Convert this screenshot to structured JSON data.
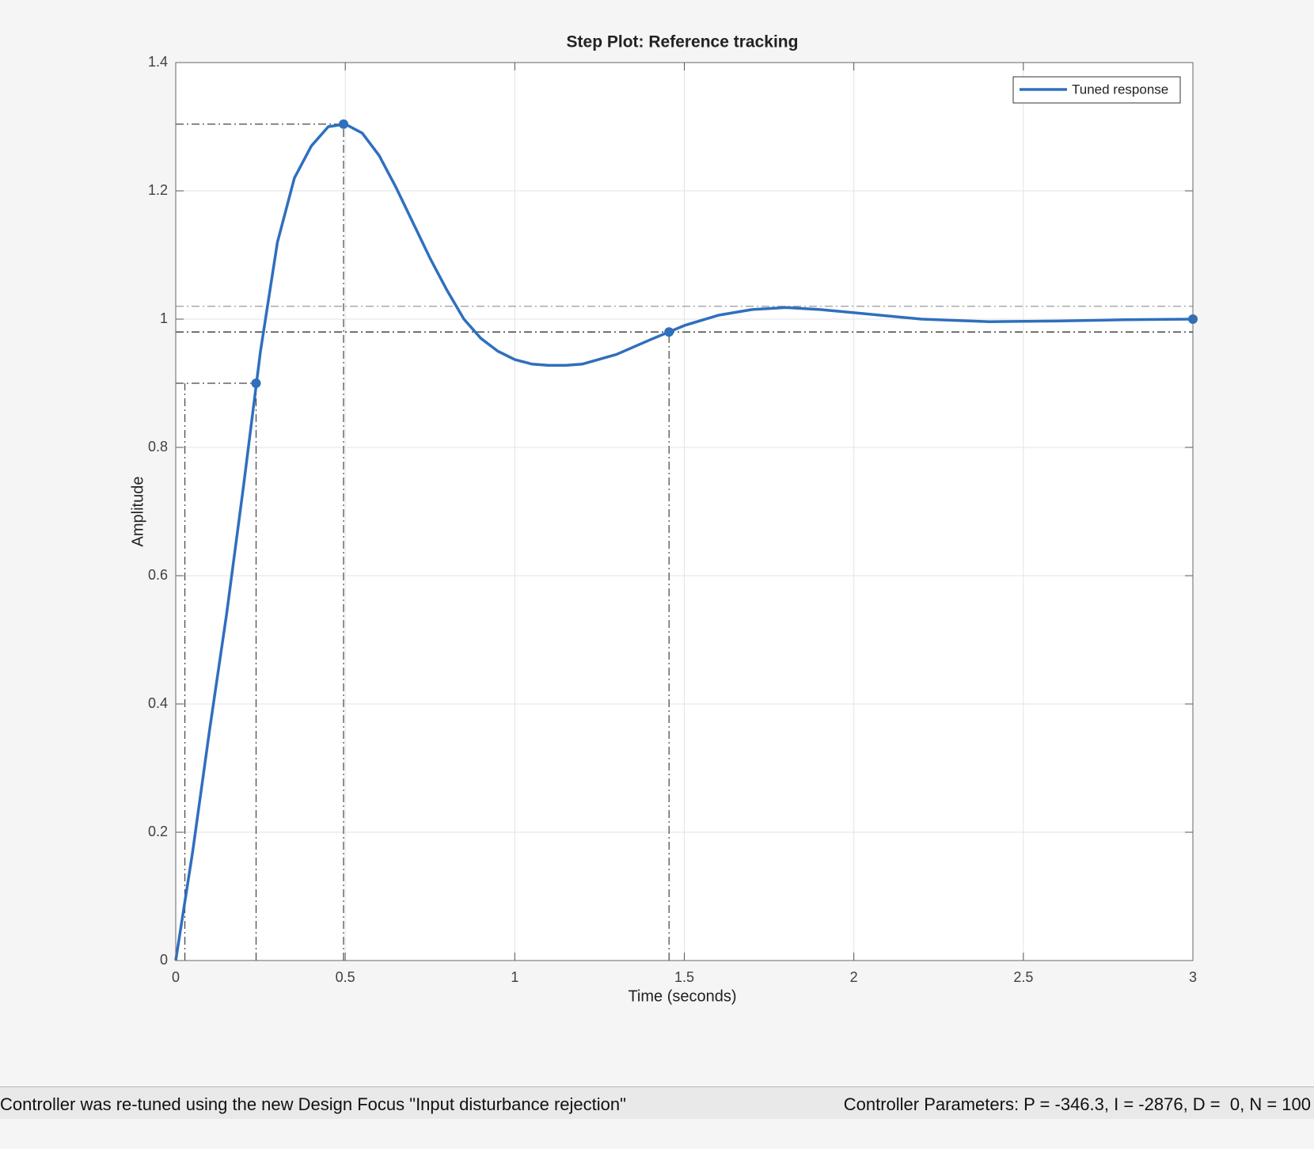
{
  "chart_data": {
    "type": "line",
    "title": "Step Plot: Reference tracking",
    "xlabel": "Time (seconds)",
    "ylabel": "Amplitude",
    "x": [
      0,
      0.05,
      0.1,
      0.15,
      0.2,
      0.25,
      0.3,
      0.35,
      0.4,
      0.45,
      0.5,
      0.55,
      0.6,
      0.65,
      0.7,
      0.75,
      0.8,
      0.85,
      0.9,
      0.95,
      1.0,
      1.05,
      1.1,
      1.15,
      1.2,
      1.3,
      1.4,
      1.5,
      1.6,
      1.7,
      1.8,
      1.9,
      2.0,
      2.2,
      2.4,
      2.6,
      2.8,
      3.0
    ],
    "series": [
      {
        "name": "Tuned response",
        "color": "#2f6fbd",
        "values": [
          0,
          0.17,
          0.36,
          0.54,
          0.74,
          0.95,
          1.12,
          1.22,
          1.27,
          1.3,
          1.304,
          1.29,
          1.255,
          1.205,
          1.15,
          1.095,
          1.045,
          1.0,
          0.97,
          0.95,
          0.937,
          0.93,
          0.928,
          0.928,
          0.93,
          0.945,
          0.968,
          0.99,
          1.006,
          1.015,
          1.018,
          1.015,
          1.01,
          1.0,
          0.996,
          0.997,
          0.999,
          1.0
        ]
      }
    ],
    "characteristics": {
      "x": [
        0.237,
        0.495,
        1.455,
        3.0
      ],
      "y": [
        0.9,
        1.304,
        0.98,
        1.0
      ]
    },
    "rise_start": {
      "x": 0.027,
      "y": 0.9
    },
    "settling_band": [
      0.98,
      1.02
    ],
    "xlim": [
      0,
      3
    ],
    "ylim": [
      0,
      1.4
    ],
    "xticks": [
      0,
      0.5,
      1,
      1.5,
      2,
      2.5,
      3
    ],
    "yticks": [
      0,
      0.2,
      0.4,
      0.6,
      0.8,
      1,
      1.2,
      1.4
    ],
    "grid": true,
    "legend": "top-right"
  },
  "status": {
    "left": "Controller was re-tuned using the new Design Focus \"Input disturbance rejection\"",
    "right": "Controller Parameters: P = -346.3, I = -2876, D =  0, N = 100"
  }
}
